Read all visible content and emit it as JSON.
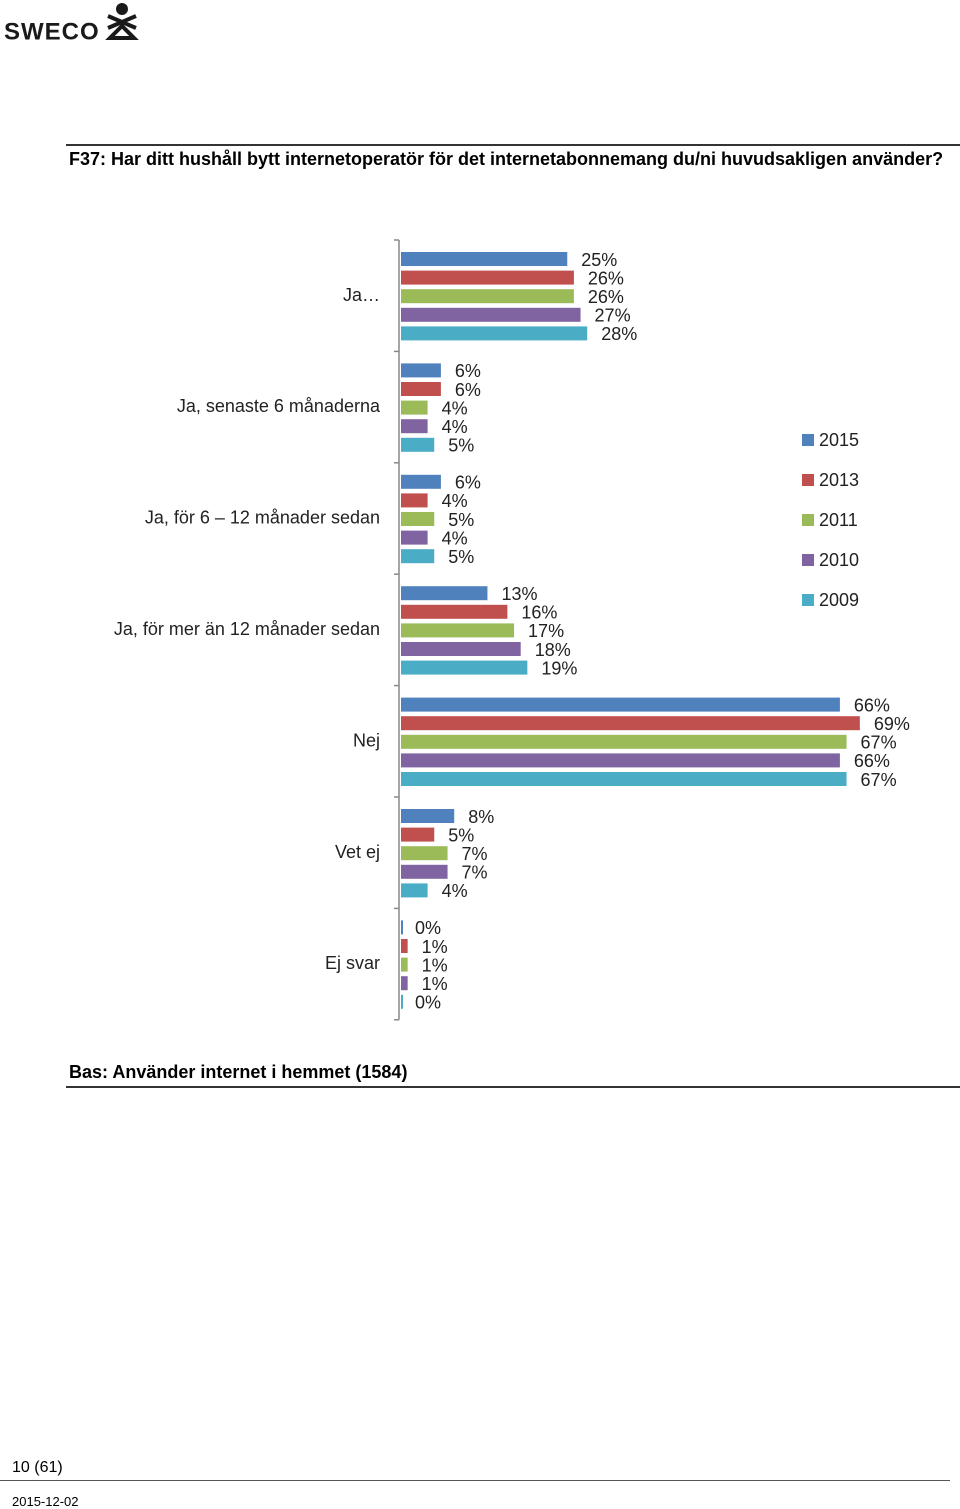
{
  "header": {
    "logo": "SWECO",
    "title": "F37: Har ditt hushåll bytt internetoperatör för det internetabonnemang du/ni huvudsakligen använder?"
  },
  "chart_data": {
    "type": "bar",
    "orientation": "horizontal",
    "categories": [
      "Ja…",
      "Ja, senaste 6 månaderna",
      "Ja, för 6 – 12 månader sedan",
      "Ja, för mer än 12 månader sedan",
      "Nej",
      "Vet ej",
      "Ej svar"
    ],
    "series": [
      {
        "name": "2015",
        "color": "#4f81bd",
        "values": [
          25,
          6,
          6,
          13,
          66,
          8,
          0
        ],
        "value_labels": [
          "25%",
          "6%",
          "6%",
          "13%",
          "66%",
          "8%",
          "0%"
        ]
      },
      {
        "name": "2013",
        "color": "#c0504d",
        "values": [
          26,
          6,
          4,
          16,
          69,
          5,
          1
        ],
        "value_labels": [
          "26%",
          "6%",
          "4%",
          "16%",
          "69%",
          "5%",
          "1%"
        ]
      },
      {
        "name": "2011",
        "color": "#9bbb59",
        "values": [
          26,
          4,
          5,
          17,
          67,
          7,
          1
        ],
        "value_labels": [
          "26%",
          "4%",
          "5%",
          "17%",
          "67%",
          "7%",
          "1%"
        ]
      },
      {
        "name": "2010",
        "color": "#8064a2",
        "values": [
          27,
          4,
          4,
          18,
          66,
          7,
          1
        ],
        "value_labels": [
          "27%",
          "4%",
          "4%",
          "18%",
          "66%",
          "7%",
          "1%"
        ]
      },
      {
        "name": "2009",
        "color": "#4bacc6",
        "values": [
          28,
          5,
          5,
          19,
          67,
          4,
          0
        ],
        "value_labels": [
          "28%",
          "5%",
          "5%",
          "19%",
          "67%",
          "4%",
          "0%"
        ]
      }
    ],
    "legend": "right"
  },
  "base": "Bas: Använder internet i hemmet (1584)",
  "footer": {
    "page": "10 (61)",
    "date": "2015-12-02"
  }
}
